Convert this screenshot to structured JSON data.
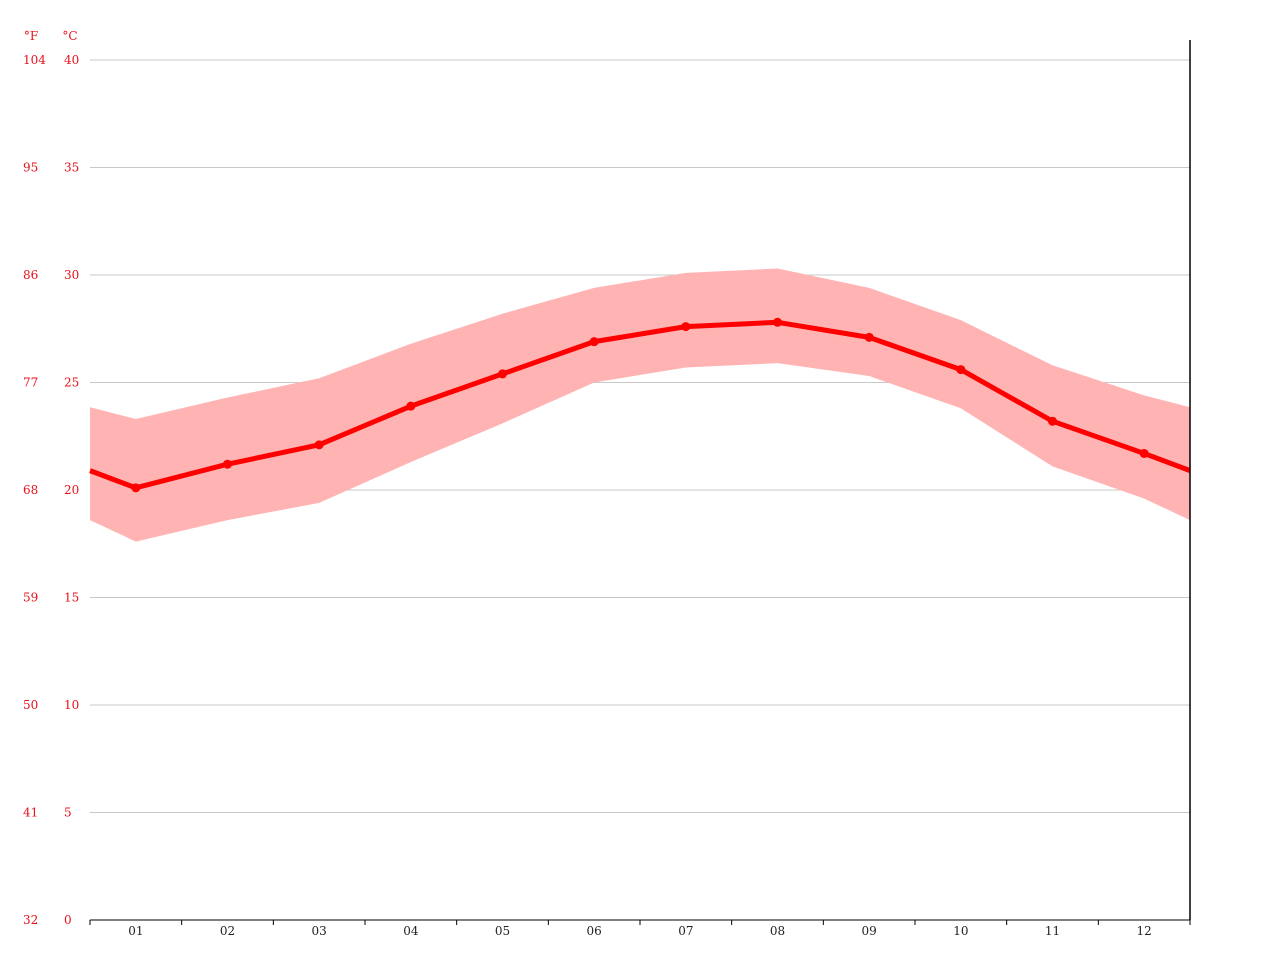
{
  "colors": {
    "axis_label": "#e8101a",
    "line": "#ff0000",
    "band": "#ffb3b3",
    "grid": "#c8c8c8",
    "axis": "#000000",
    "x_label": "#222222"
  },
  "chart_data": {
    "type": "line",
    "y_units": [
      "°F",
      "°C"
    ],
    "ylim_celsius": [
      0,
      40
    ],
    "y_ticks_celsius": [
      "0",
      "5",
      "10",
      "15",
      "20",
      "25",
      "30",
      "35",
      "40"
    ],
    "y_ticks_fahrenheit": [
      "32",
      "41",
      "50",
      "59",
      "68",
      "77",
      "86",
      "95",
      "104"
    ],
    "categories": [
      "01",
      "02",
      "03",
      "04",
      "05",
      "06",
      "07",
      "08",
      "09",
      "10",
      "11",
      "12"
    ],
    "grid": true,
    "series": [
      {
        "role": "mean",
        "values": [
          20.1,
          21.2,
          22.1,
          23.9,
          25.4,
          26.9,
          27.6,
          27.8,
          27.1,
          25.6,
          23.2,
          21.7
        ]
      },
      {
        "role": "band_max",
        "values": [
          23.3,
          24.3,
          25.2,
          26.8,
          28.2,
          29.4,
          30.1,
          30.3,
          29.4,
          27.9,
          25.8,
          24.4
        ]
      },
      {
        "role": "band_min",
        "values": [
          17.6,
          18.6,
          19.4,
          21.3,
          23.1,
          25.0,
          25.7,
          25.9,
          25.3,
          23.8,
          21.1,
          19.6
        ]
      }
    ]
  }
}
